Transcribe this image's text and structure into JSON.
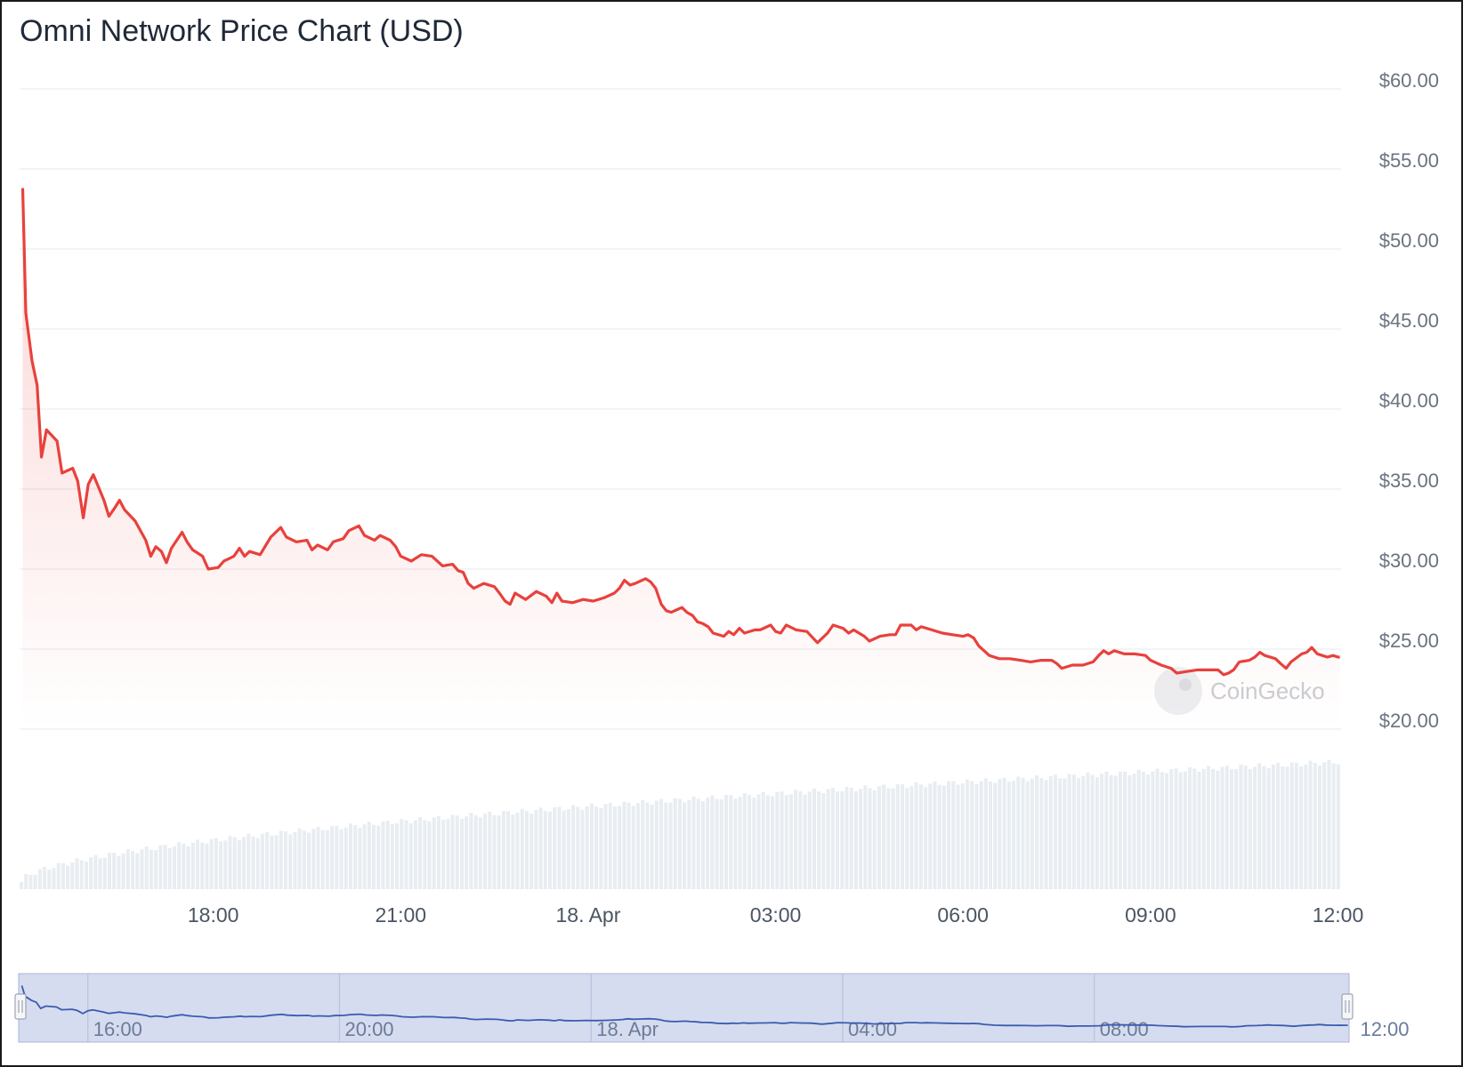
{
  "chart_title": "Omni Network Price Chart (USD)",
  "watermark": "CoinGecko",
  "colors": {
    "price_line": "#e8413c",
    "volume_bar": "#e8edf2",
    "grid": "#e6e8eb",
    "navigator_bg": "#d6dcef",
    "navigator_line": "#3a5bb0"
  },
  "chart_data": {
    "type": "line",
    "title": "Omni Network Price Chart (USD)",
    "y_unit": "USD",
    "ylim": [
      20,
      60
    ],
    "y_ticks": [
      "$60.00",
      "$55.00",
      "$50.00",
      "$45.00",
      "$40.00",
      "$35.00",
      "$30.00",
      "$25.00",
      "$20.00"
    ],
    "y_tick_values": [
      60,
      55,
      50,
      45,
      40,
      35,
      30,
      25,
      20
    ],
    "xlim": [
      14.9,
      36.05
    ],
    "x_ticks": [
      {
        "label": "18:00",
        "t": 18
      },
      {
        "label": "21:00",
        "t": 21
      },
      {
        "label": "18. Apr",
        "t": 24
      },
      {
        "label": "03:00",
        "t": 27
      },
      {
        "label": "06:00",
        "t": 30
      },
      {
        "label": "09:00",
        "t": 33
      },
      {
        "label": "12:00",
        "t": 36
      }
    ],
    "series": [
      {
        "points": [
          [
            14.95,
            53.8
          ],
          [
            15.0,
            46.0
          ],
          [
            15.1,
            43.0
          ],
          [
            15.18,
            41.5
          ],
          [
            15.25,
            37.0
          ],
          [
            15.33,
            38.7
          ],
          [
            15.5,
            38.0
          ],
          [
            15.58,
            36.0
          ],
          [
            15.75,
            36.3
          ],
          [
            15.83,
            35.5
          ],
          [
            15.92,
            33.2
          ],
          [
            16.0,
            35.3
          ],
          [
            16.08,
            35.9
          ],
          [
            16.25,
            34.3
          ],
          [
            16.33,
            33.3
          ],
          [
            16.42,
            33.8
          ],
          [
            16.5,
            34.3
          ],
          [
            16.58,
            33.7
          ],
          [
            16.75,
            33.0
          ],
          [
            16.92,
            31.8
          ],
          [
            17.0,
            30.8
          ],
          [
            17.08,
            31.4
          ],
          [
            17.17,
            31.1
          ],
          [
            17.25,
            30.4
          ],
          [
            17.33,
            31.3
          ],
          [
            17.5,
            32.3
          ],
          [
            17.58,
            31.7
          ],
          [
            17.67,
            31.2
          ],
          [
            17.83,
            30.8
          ],
          [
            17.92,
            30.0
          ],
          [
            18.08,
            30.1
          ],
          [
            18.17,
            30.5
          ],
          [
            18.33,
            30.8
          ],
          [
            18.42,
            31.3
          ],
          [
            18.5,
            30.8
          ],
          [
            18.58,
            31.1
          ],
          [
            18.75,
            30.9
          ],
          [
            18.92,
            32.0
          ],
          [
            19.08,
            32.6
          ],
          [
            19.17,
            32.0
          ],
          [
            19.33,
            31.7
          ],
          [
            19.5,
            31.8
          ],
          [
            19.58,
            31.2
          ],
          [
            19.67,
            31.5
          ],
          [
            19.83,
            31.2
          ],
          [
            19.92,
            31.7
          ],
          [
            20.08,
            31.9
          ],
          [
            20.17,
            32.4
          ],
          [
            20.33,
            32.7
          ],
          [
            20.42,
            32.1
          ],
          [
            20.58,
            31.8
          ],
          [
            20.67,
            32.1
          ],
          [
            20.83,
            31.8
          ],
          [
            20.92,
            31.4
          ],
          [
            21.0,
            30.8
          ],
          [
            21.17,
            30.5
          ],
          [
            21.33,
            30.9
          ],
          [
            21.5,
            30.8
          ],
          [
            21.67,
            30.2
          ],
          [
            21.83,
            30.3
          ],
          [
            21.92,
            29.9
          ],
          [
            22.0,
            29.8
          ],
          [
            22.08,
            29.1
          ],
          [
            22.17,
            28.8
          ],
          [
            22.33,
            29.1
          ],
          [
            22.5,
            28.9
          ],
          [
            22.58,
            28.5
          ],
          [
            22.67,
            28.0
          ],
          [
            22.75,
            27.8
          ],
          [
            22.83,
            28.5
          ],
          [
            23.0,
            28.1
          ],
          [
            23.17,
            28.6
          ],
          [
            23.33,
            28.3
          ],
          [
            23.42,
            27.9
          ],
          [
            23.5,
            28.5
          ],
          [
            23.58,
            28.0
          ],
          [
            23.75,
            27.9
          ],
          [
            23.92,
            28.1
          ],
          [
            24.08,
            28.0
          ],
          [
            24.25,
            28.2
          ],
          [
            24.42,
            28.5
          ],
          [
            24.5,
            28.8
          ],
          [
            24.58,
            29.3
          ],
          [
            24.67,
            29.0
          ],
          [
            24.75,
            29.1
          ],
          [
            24.92,
            29.4
          ],
          [
            25.0,
            29.2
          ],
          [
            25.08,
            28.8
          ],
          [
            25.17,
            27.8
          ],
          [
            25.25,
            27.4
          ],
          [
            25.33,
            27.3
          ],
          [
            25.5,
            27.6
          ],
          [
            25.58,
            27.3
          ],
          [
            25.67,
            27.1
          ],
          [
            25.75,
            26.7
          ],
          [
            25.83,
            26.6
          ],
          [
            25.92,
            26.4
          ],
          [
            26.0,
            26.0
          ],
          [
            26.17,
            25.8
          ],
          [
            26.25,
            26.1
          ],
          [
            26.33,
            25.9
          ],
          [
            26.42,
            26.3
          ],
          [
            26.5,
            26.0
          ],
          [
            26.67,
            26.2
          ],
          [
            26.75,
            26.2
          ],
          [
            26.92,
            26.5
          ],
          [
            27.0,
            26.1
          ],
          [
            27.08,
            26.0
          ],
          [
            27.17,
            26.5
          ],
          [
            27.33,
            26.2
          ],
          [
            27.5,
            26.1
          ],
          [
            27.67,
            25.4
          ],
          [
            27.83,
            26.0
          ],
          [
            27.92,
            26.5
          ],
          [
            28.08,
            26.3
          ],
          [
            28.17,
            26.0
          ],
          [
            28.25,
            26.2
          ],
          [
            28.42,
            25.8
          ],
          [
            28.5,
            25.5
          ],
          [
            28.67,
            25.8
          ],
          [
            28.83,
            25.9
          ],
          [
            28.92,
            25.9
          ],
          [
            29.0,
            26.5
          ],
          [
            29.17,
            26.5
          ],
          [
            29.25,
            26.2
          ],
          [
            29.33,
            26.4
          ],
          [
            29.5,
            26.2
          ],
          [
            29.67,
            26.0
          ],
          [
            29.83,
            25.9
          ],
          [
            30.0,
            25.8
          ],
          [
            30.08,
            25.9
          ],
          [
            30.17,
            25.7
          ],
          [
            30.25,
            25.2
          ],
          [
            30.42,
            24.6
          ],
          [
            30.58,
            24.4
          ],
          [
            30.75,
            24.4
          ],
          [
            30.92,
            24.3
          ],
          [
            31.08,
            24.2
          ],
          [
            31.25,
            24.3
          ],
          [
            31.42,
            24.3
          ],
          [
            31.5,
            24.1
          ],
          [
            31.58,
            23.8
          ],
          [
            31.75,
            24.0
          ],
          [
            31.92,
            24.0
          ],
          [
            32.08,
            24.2
          ],
          [
            32.17,
            24.6
          ],
          [
            32.25,
            24.9
          ],
          [
            32.33,
            24.7
          ],
          [
            32.42,
            24.9
          ],
          [
            32.58,
            24.7
          ],
          [
            32.75,
            24.7
          ],
          [
            32.92,
            24.6
          ],
          [
            33.0,
            24.3
          ],
          [
            33.17,
            24.0
          ],
          [
            33.33,
            23.8
          ],
          [
            33.42,
            23.5
          ],
          [
            33.58,
            23.6
          ],
          [
            33.75,
            23.7
          ],
          [
            33.92,
            23.7
          ],
          [
            34.08,
            23.7
          ],
          [
            34.17,
            23.4
          ],
          [
            34.25,
            23.5
          ],
          [
            34.33,
            23.7
          ],
          [
            34.42,
            24.2
          ],
          [
            34.58,
            24.3
          ],
          [
            34.67,
            24.5
          ],
          [
            34.75,
            24.8
          ],
          [
            34.83,
            24.6
          ],
          [
            35.0,
            24.4
          ],
          [
            35.08,
            24.1
          ],
          [
            35.17,
            23.8
          ],
          [
            35.25,
            24.2
          ],
          [
            35.42,
            24.7
          ],
          [
            35.5,
            24.8
          ],
          [
            35.58,
            25.1
          ],
          [
            35.67,
            24.7
          ],
          [
            35.75,
            24.6
          ],
          [
            35.83,
            24.5
          ],
          [
            35.92,
            24.6
          ],
          [
            36.0,
            24.5
          ],
          [
            36.03,
            24.5
          ]
        ]
      }
    ],
    "navigator": {
      "x_ticks": [
        {
          "label": "16:00",
          "t": 16
        },
        {
          "label": "20:00",
          "t": 20
        },
        {
          "label": "18. Apr",
          "t": 24
        },
        {
          "label": "04:00",
          "t": 28
        },
        {
          "label": "08:00",
          "t": 32
        },
        {
          "label": "12:00",
          "t": 36
        }
      ]
    }
  }
}
